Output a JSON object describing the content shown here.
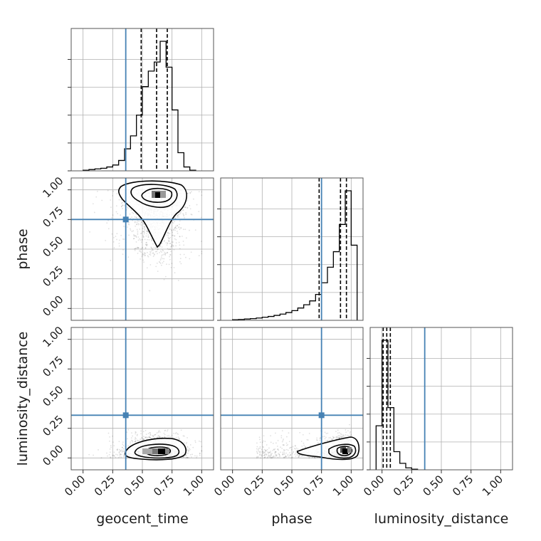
{
  "chart_data": {
    "type": "corner",
    "parameters": [
      "geocent_time",
      "phase",
      "luminosity_distance"
    ],
    "axis_range": [
      -0.1,
      1.1
    ],
    "ticks": [
      0.0,
      0.25,
      0.5,
      0.75,
      1.0
    ],
    "tick_labels": [
      "0.00",
      "0.25",
      "0.50",
      "0.75",
      "1.00"
    ],
    "grid": true,
    "truth_color": "#4682b4",
    "truths": {
      "geocent_time": 0.36,
      "phase": 0.75,
      "luminosity_distance": 0.36
    },
    "quantile_lines": {
      "geocent_time": [
        0.49,
        0.62,
        0.71
      ],
      "phase": [
        0.73,
        0.91,
        0.96
      ],
      "luminosity_distance": [
        0.01,
        0.04,
        0.07
      ]
    },
    "histograms": {
      "geocent_time": {
        "x": [
          0.0,
          0.05,
          0.1,
          0.15,
          0.2,
          0.25,
          0.3,
          0.35,
          0.4,
          0.45,
          0.5,
          0.55,
          0.6,
          0.65,
          0.7,
          0.75,
          0.8,
          0.85,
          0.9
        ],
        "y": [
          0.005,
          0.01,
          0.015,
          0.02,
          0.03,
          0.045,
          0.08,
          0.17,
          0.27,
          0.43,
          0.65,
          0.77,
          0.84,
          1.0,
          0.8,
          0.47,
          0.14,
          0.03,
          0.005
        ]
      },
      "phase": {
        "x": [
          0.0,
          0.05,
          0.1,
          0.15,
          0.2,
          0.25,
          0.3,
          0.35,
          0.4,
          0.45,
          0.5,
          0.55,
          0.6,
          0.65,
          0.7,
          0.75,
          0.8,
          0.85,
          0.9,
          0.95,
          1.0
        ],
        "y": [
          0.005,
          0.007,
          0.01,
          0.013,
          0.018,
          0.024,
          0.03,
          0.038,
          0.048,
          0.06,
          0.075,
          0.095,
          0.12,
          0.15,
          0.2,
          0.29,
          0.41,
          0.53,
          0.74,
          1.0,
          0.58
        ]
      },
      "luminosity_distance": {
        "x": [
          -0.05,
          0.0,
          0.05,
          0.1,
          0.15,
          0.2,
          0.25
        ],
        "y": [
          0.34,
          1.0,
          0.48,
          0.14,
          0.05,
          0.015,
          0.005
        ]
      }
    },
    "density_panels": [
      {
        "x": "geocent_time",
        "y": "phase",
        "peak": [
          0.65,
          0.96
        ]
      },
      {
        "x": "geocent_time",
        "y": "luminosity_distance",
        "peak": [
          0.65,
          0.05
        ]
      },
      {
        "x": "phase",
        "y": "luminosity_distance",
        "peak": [
          0.95,
          0.05
        ]
      }
    ]
  }
}
